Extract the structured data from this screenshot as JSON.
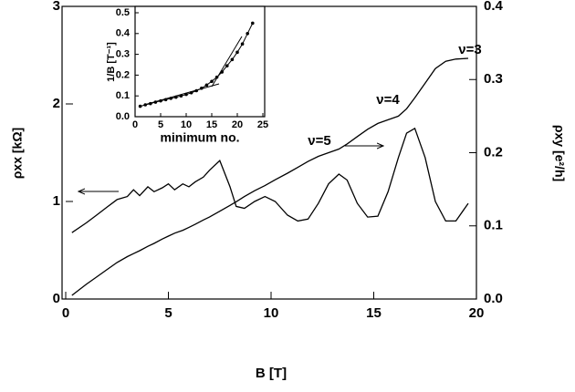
{
  "chart_data": [
    {
      "type": "line",
      "x_label": "B [T]",
      "y_label": "ρxx [kΩ]",
      "y2_label": "ρxy [e²/h]",
      "annotations": [
        "ν=3",
        "ν=4",
        "ν=5"
      ],
      "x": [
        0.3,
        1,
        1.5,
        2,
        2.5,
        3,
        3.3,
        3.6,
        4,
        4.3,
        4.7,
        5,
        5.3,
        5.7,
        6,
        6.3,
        6.7,
        7,
        7.5,
        8,
        8.3,
        8.7,
        9.2,
        9.7,
        10.2,
        10.8,
        11.3,
        11.8,
        12.3,
        12.8,
        13.3,
        13.7,
        14.2,
        14.7,
        15.2,
        15.7,
        16.2,
        16.6,
        17,
        17.5,
        18,
        18.5,
        19,
        19.6
      ],
      "series": [
        {
          "color": "#000000",
          "values": [
            0.68,
            0.78,
            0.86,
            0.94,
            1.02,
            1.05,
            1.12,
            1.06,
            1.15,
            1.1,
            1.14,
            1.18,
            1.12,
            1.18,
            1.15,
            1.2,
            1.25,
            1.32,
            1.42,
            1.15,
            0.95,
            0.93,
            1.0,
            1.05,
            1.0,
            0.86,
            0.8,
            0.82,
            0.98,
            1.18,
            1.28,
            1.22,
            0.98,
            0.84,
            0.85,
            1.1,
            1.45,
            1.7,
            1.75,
            1.45,
            1.0,
            0.8,
            0.8,
            0.98
          ]
        },
        {
          "color": "#000000",
          "axis": "y2",
          "values": [
            0.005,
            0.02,
            0.03,
            0.04,
            0.05,
            0.058,
            0.062,
            0.066,
            0.072,
            0.076,
            0.082,
            0.086,
            0.09,
            0.094,
            0.098,
            0.102,
            0.108,
            0.112,
            0.12,
            0.128,
            0.133,
            0.14,
            0.148,
            0.155,
            0.163,
            0.172,
            0.18,
            0.188,
            0.195,
            0.2,
            0.205,
            0.212,
            0.222,
            0.232,
            0.24,
            0.245,
            0.25,
            0.26,
            0.275,
            0.295,
            0.315,
            0.325,
            0.328,
            0.329
          ]
        }
      ],
      "xlim": [
        0,
        20
      ],
      "xticks": [
        0,
        5,
        10,
        15,
        20
      ],
      "ylim": [
        0,
        3
      ],
      "yticks": [
        0,
        1,
        2,
        3
      ],
      "y2lim": [
        0,
        0.4
      ],
      "y2ticks": [
        {
          "value": 0,
          "label": "0.0"
        },
        0.1,
        0.2,
        0.3,
        0.4
      ]
    },
    {
      "type": "scatter",
      "x_label": "minimum no.",
      "y_label": "1/B [T⁻¹]",
      "x": [
        1,
        2,
        3,
        4,
        5,
        6,
        7,
        8,
        9,
        10,
        11,
        12,
        13,
        14,
        15,
        16,
        17,
        18,
        19,
        20,
        21,
        22,
        23
      ],
      "values": [
        0.05,
        0.057,
        0.063,
        0.07,
        0.076,
        0.082,
        0.088,
        0.094,
        0.1,
        0.107,
        0.115,
        0.125,
        0.137,
        0.152,
        0.17,
        0.19,
        0.215,
        0.245,
        0.275,
        0.31,
        0.35,
        0.4,
        0.45
      ],
      "color": "#000000",
      "xlim": [
        0,
        25
      ],
      "xticks": [
        0,
        5,
        10,
        15,
        20,
        25
      ],
      "ylim": [
        0,
        0.5
      ],
      "yticks": [
        {
          "value": 0,
          "label": "0.0"
        },
        0.1,
        0.2,
        0.3,
        0.4,
        0.5
      ]
    }
  ]
}
